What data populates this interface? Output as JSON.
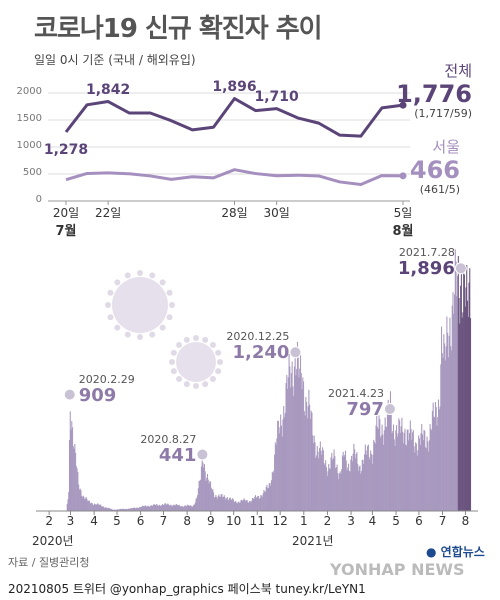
{
  "header": {
    "title": "코로나19 신규 확진자 추이",
    "subtitle": "일일 0시 기준 (국내 / 해외유입)"
  },
  "colors": {
    "national": "#5b4478",
    "seoul": "#a48fbe",
    "histogram": "#a899bf",
    "histogram_dark": "#6b557f",
    "marker": "#c8c2d4"
  },
  "chart_data": [
    {
      "type": "line",
      "title": "",
      "x": [
        "7/20",
        "7/21",
        "7/22",
        "7/23",
        "7/24",
        "7/25",
        "7/26",
        "7/27",
        "7/28",
        "7/29",
        "7/30",
        "7/31",
        "8/1",
        "8/2",
        "8/3",
        "8/4",
        "8/5"
      ],
      "x_tick_labels": [
        "20일",
        "22일",
        "28일",
        "30일",
        "5일"
      ],
      "month_labels": [
        "7월",
        "8월"
      ],
      "ylim": [
        0,
        2000
      ],
      "y_ticks": [
        "0",
        "500",
        "1000",
        "1500",
        "2000"
      ],
      "grid": true,
      "series": [
        {
          "name": "전체",
          "values": [
            1278,
            1781,
            1842,
            1630,
            1630,
            1487,
            1318,
            1365,
            1896,
            1674,
            1710,
            1539,
            1442,
            1219,
            1202,
            1725,
            1776
          ],
          "labels": {
            "0": "1,278",
            "2": "1,842",
            "8": "1,896",
            "10": "1,710"
          },
          "latest_value": "1,776",
          "latest_breakdown": "(1,717/59)"
        },
        {
          "name": "서울",
          "values": [
            394,
            510,
            520,
            504,
            464,
            400,
            450,
            428,
            580,
            508,
            468,
            478,
            464,
            353,
            305,
            471,
            466
          ],
          "latest_value": "466",
          "latest_breakdown": "(461/5)"
        }
      ]
    },
    {
      "type": "bar",
      "title": "",
      "xlabel": "",
      "ylabel": "",
      "period": "2020-01-20 to 2021-08-05",
      "month_tick_labels": [
        "2",
        "3",
        "4",
        "5",
        "6",
        "7",
        "8",
        "9",
        "10",
        "11",
        "12",
        "1",
        "2",
        "3",
        "4",
        "5",
        "6",
        "7",
        "8"
      ],
      "year_labels": [
        "2020년",
        "2021년"
      ],
      "ylim": [
        0,
        2000
      ],
      "annotations": [
        {
          "date": "2020.2.29",
          "value": "909",
          "y": 909
        },
        {
          "date": "2020.8.27",
          "value": "441",
          "y": 441
        },
        {
          "date": "2020.12.25",
          "value": "1,240",
          "y": 1240
        },
        {
          "date": "2021.4.23",
          "value": "797",
          "y": 797
        },
        {
          "date": "2021.7.28",
          "value": "1,896",
          "y": 1896
        }
      ],
      "keypoints": [
        [
          0,
          0
        ],
        [
          34,
          0
        ],
        [
          37,
          150
        ],
        [
          39,
          909
        ],
        [
          42,
          650
        ],
        [
          45,
          450
        ],
        [
          50,
          200
        ],
        [
          56,
          120
        ],
        [
          63,
          70
        ],
        [
          75,
          50
        ],
        [
          95,
          10
        ],
        [
          120,
          20
        ],
        [
          140,
          40
        ],
        [
          160,
          50
        ],
        [
          170,
          50
        ],
        [
          185,
          40
        ],
        [
          200,
          40
        ],
        [
          205,
          100
        ],
        [
          210,
          250
        ],
        [
          213,
          441
        ],
        [
          217,
          300
        ],
        [
          222,
          200
        ],
        [
          228,
          130
        ],
        [
          236,
          110
        ],
        [
          245,
          110
        ],
        [
          255,
          70
        ],
        [
          265,
          80
        ],
        [
          275,
          80
        ],
        [
          285,
          110
        ],
        [
          295,
          150
        ],
        [
          300,
          200
        ],
        [
          305,
          330
        ],
        [
          310,
          550
        ],
        [
          315,
          700
        ],
        [
          322,
          900
        ],
        [
          328,
          1050
        ],
        [
          335,
          1240
        ],
        [
          340,
          1000
        ],
        [
          343,
          1050
        ],
        [
          348,
          900
        ],
        [
          352,
          800
        ],
        [
          357,
          600
        ],
        [
          363,
          500
        ],
        [
          370,
          420
        ],
        [
          377,
          350
        ],
        [
          385,
          400
        ],
        [
          393,
          300
        ],
        [
          398,
          420
        ],
        [
          403,
          350
        ],
        [
          410,
          450
        ],
        [
          418,
          350
        ],
        [
          425,
          420
        ],
        [
          435,
          480
        ],
        [
          440,
          600
        ],
        [
          445,
          650
        ],
        [
          455,
          700
        ],
        [
          459,
          797
        ],
        [
          462,
          680
        ],
        [
          470,
          600
        ],
        [
          478,
          650
        ],
        [
          484,
          580
        ],
        [
          490,
          550
        ],
        [
          500,
          550
        ],
        [
          510,
          600
        ],
        [
          518,
          750
        ],
        [
          523,
          900
        ],
        [
          526,
          1300
        ],
        [
          530,
          1100
        ],
        [
          535,
          1500
        ],
        [
          541,
          1550
        ],
        [
          545,
          1700
        ],
        [
          552,
          1896
        ],
        [
          556,
          1700
        ],
        [
          560,
          1500
        ],
        [
          563,
          1750
        ]
      ]
    }
  ],
  "source": "자료 / 질병관리청",
  "footer": "20210805 트위터 @yonhap_graphics  페이스북 tuney.kr/LeYN1",
  "logo": {
    "brand": "연합뉴스",
    "watermark": "YONHAP NEWS"
  }
}
